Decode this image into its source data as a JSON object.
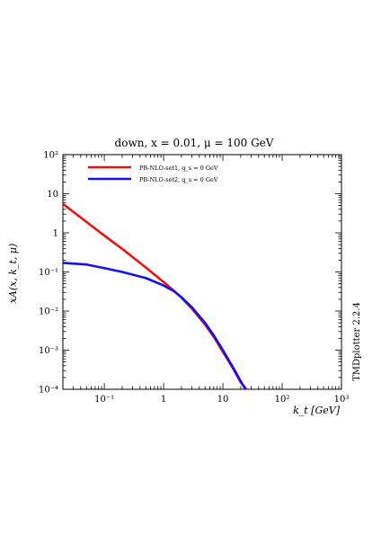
{
  "chart_data": {
    "type": "line",
    "title": "down, x = 0.01, μ = 100 GeV",
    "xlabel": "k_t [GeV]",
    "ylabel": "xA(x, k_t, μ)",
    "xscale": "log",
    "yscale": "log",
    "xlim": [
      0.02,
      1000
    ],
    "ylim": [
      0.0001,
      100
    ],
    "xticks": [
      {
        "value": 0.1,
        "label": "10⁻¹"
      },
      {
        "value": 1,
        "label": "1"
      },
      {
        "value": 10,
        "label": "10"
      },
      {
        "value": 100,
        "label": "10²"
      },
      {
        "value": 1000,
        "label": "10³"
      }
    ],
    "yticks": [
      {
        "value": 0.0001,
        "label": "10⁻⁴"
      },
      {
        "value": 0.001,
        "label": "10⁻³"
      },
      {
        "value": 0.01,
        "label": "10⁻²"
      },
      {
        "value": 0.1,
        "label": "10⁻¹"
      },
      {
        "value": 1,
        "label": "1"
      },
      {
        "value": 10,
        "label": "10"
      },
      {
        "value": 100,
        "label": "10²"
      }
    ],
    "legend_position": "top-left",
    "series": [
      {
        "name": "PB-NLO-set1, q_s = 0 GeV",
        "color": "#ee1111",
        "x": [
          0.02,
          0.05,
          0.1,
          0.2,
          0.5,
          1,
          1.5,
          2,
          3,
          5,
          7,
          10,
          15,
          20,
          25
        ],
        "y": [
          5.5,
          1.9,
          0.85,
          0.39,
          0.13,
          0.055,
          0.033,
          0.022,
          0.0115,
          0.0045,
          0.0022,
          0.0009,
          0.00033,
          0.00015,
          0.0001
        ]
      },
      {
        "name": "PB-NLO-set2, q_s = 0 GeV",
        "color": "#1111ee",
        "x": [
          0.02,
          0.05,
          0.1,
          0.2,
          0.5,
          1,
          1.5,
          2,
          3,
          5,
          7,
          10,
          15,
          20,
          24
        ],
        "y": [
          0.17,
          0.155,
          0.125,
          0.1,
          0.07,
          0.045,
          0.032,
          0.0225,
          0.0125,
          0.005,
          0.0024,
          0.001,
          0.00035,
          0.00016,
          0.0001
        ]
      }
    ]
  },
  "side_label": "TMDplotter 2.2.4"
}
